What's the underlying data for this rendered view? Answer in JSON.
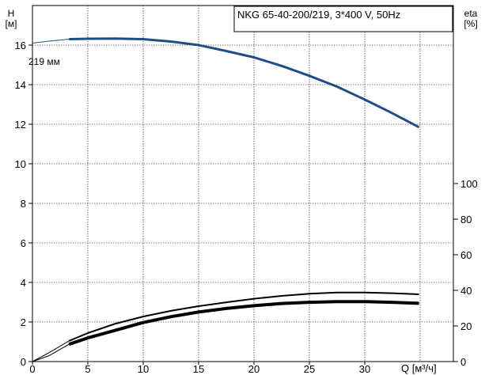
{
  "chart_data": {
    "type": "line",
    "title": "NKG 65-40-200/219, 3*400 V, 50Hz",
    "xlabel": "Q [м³/ч]",
    "ylabel": "H",
    "ylabel_unit": "[м]",
    "y2label": "eta",
    "y2label_unit": "[%]",
    "impeller_label": "219 мм",
    "xlim": [
      0,
      38
    ],
    "ylim": [
      0,
      18
    ],
    "y2lim": [
      0,
      100
    ],
    "x_ticks": [
      "0",
      "5",
      "10",
      "15",
      "20",
      "25",
      "30"
    ],
    "y_ticks": [
      "0",
      "2",
      "4",
      "6",
      "8",
      "10",
      "12",
      "14",
      "16"
    ],
    "y2_ticks": [
      "0",
      "20",
      "40",
      "60",
      "80",
      "100"
    ],
    "grid": true,
    "legend": "none",
    "series": [
      {
        "key": "head",
        "axis": "left",
        "color": "#1f4e86",
        "x": [
          3.3,
          5,
          7.5,
          10,
          12.5,
          15,
          17.5,
          20,
          22.5,
          25,
          27.5,
          30,
          32.5,
          34.9
        ],
        "y": [
          16.3,
          16.32,
          16.33,
          16.3,
          16.18,
          16.0,
          15.7,
          15.38,
          14.95,
          14.45,
          13.9,
          13.25,
          12.55,
          11.85
        ]
      },
      {
        "key": "head_extension",
        "axis": "left",
        "color": "#1f4e86",
        "x": [
          0,
          1.5,
          3.3
        ],
        "y": [
          16.1,
          16.2,
          16.3
        ]
      },
      {
        "key": "efficiency_thin",
        "axis": "right",
        "color": "#000000",
        "x": [
          3.3,
          5,
          7.5,
          10,
          12.5,
          15,
          17.5,
          20,
          22.5,
          25,
          27.5,
          30,
          32.5,
          34.9
        ],
        "y": [
          11.6,
          16.0,
          21.3,
          25.3,
          28.5,
          31.1,
          33.3,
          35.3,
          36.9,
          38.1,
          38.8,
          38.8,
          38.4,
          37.8
        ]
      },
      {
        "key": "efficiency_thin_extension",
        "axis": "right",
        "color": "#000000",
        "x": [
          0,
          1.5,
          3.3
        ],
        "y": [
          0,
          5.0,
          11.6
        ]
      },
      {
        "key": "efficiency_thick",
        "axis": "right",
        "color": "#000000",
        "x": [
          3.3,
          5,
          7.5,
          10,
          12.5,
          15,
          17.5,
          20,
          22.5,
          25,
          27.5,
          30,
          32.5,
          34.9
        ],
        "y": [
          9.7,
          13.3,
          17.6,
          21.9,
          25.2,
          27.8,
          29.8,
          31.4,
          32.6,
          33.3,
          33.7,
          33.7,
          33.3,
          32.7
        ]
      },
      {
        "key": "efficiency_thick_extension",
        "axis": "right",
        "color": "#000000",
        "x": [
          0,
          1.5,
          3.3
        ],
        "y": [
          0,
          3.3,
          9.7
        ]
      }
    ]
  }
}
